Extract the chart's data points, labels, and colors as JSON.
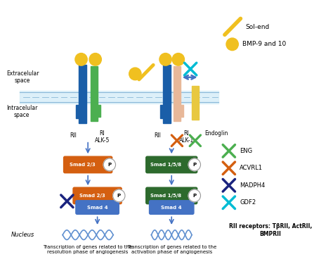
{
  "bg_color": "#ffffff",
  "smad23_color": "#d45f10",
  "smad158_color": "#2d6a2d",
  "smad4_color": "#4472c4",
  "receptor_blue": "#1a5ea8",
  "receptor_green": "#4caf50",
  "receptor_peach": "#e8b899",
  "receptor_yellow": "#e8c840",
  "membrane_color": "#c5dff0",
  "arrow_color": "#4472c4",
  "legend_items": [
    {
      "color": "#4caf50",
      "label": "ENG"
    },
    {
      "color": "#d45f10",
      "label": "ACVRL1"
    },
    {
      "color": "#1a237e",
      "label": "MADPH4"
    },
    {
      "color": "#00bcd4",
      "label": "GDF2"
    }
  ],
  "rII_receptors_text": "RII receptors: TβRII, ActRII,\nBMPRII",
  "transcription_left": "Transcription of genes related to the\nresolution phase of angiogenesis",
  "transcription_right": "Transcription of genes related to the\nactivation phase of angiogenesis",
  "sol_end_label": "Sol-end",
  "bmp_label": "BMP-9 and 10",
  "extracellular_label": "Extracelular\nspace",
  "intracellular_label": "Intracelular\nspace",
  "nucleus_label": "Nucleus"
}
